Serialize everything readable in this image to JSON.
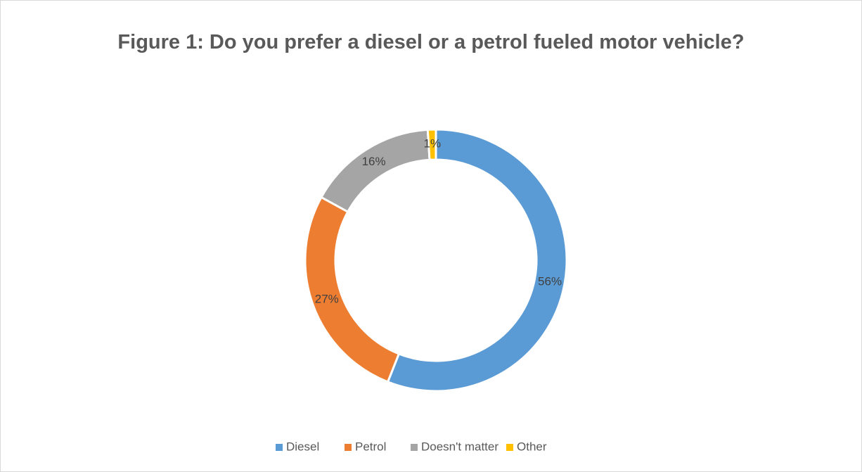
{
  "chart_data": {
    "type": "donut",
    "title": "Figure 1: Do you prefer a diesel or a petrol fueled motor vehicle?",
    "categories": [
      "Diesel",
      "Petrol",
      "Doesn't matter",
      "Other"
    ],
    "values": [
      56,
      27,
      16,
      1
    ],
    "value_labels": [
      "56%",
      "27%",
      "16%",
      "1%"
    ],
    "colors": [
      "#5b9bd5",
      "#ed7d31",
      "#a5a5a5",
      "#ffc000"
    ],
    "legend": "bottom"
  }
}
